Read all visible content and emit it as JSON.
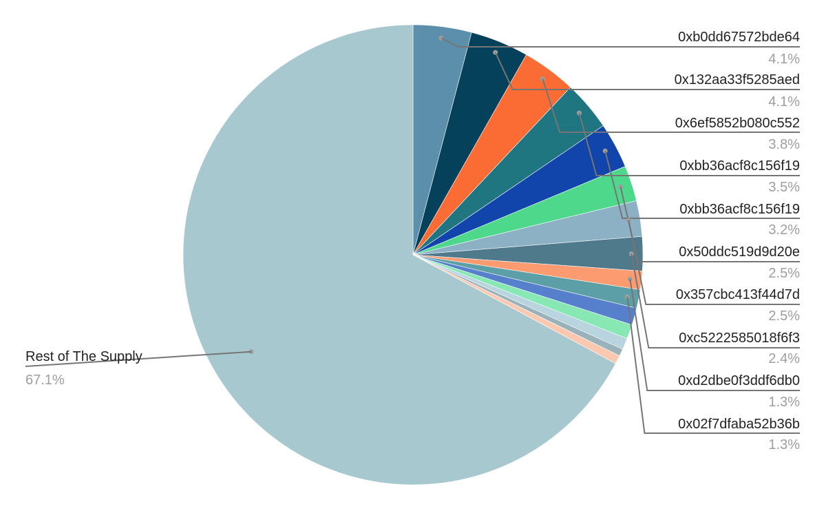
{
  "chart_data": {
    "type": "pie",
    "title": "",
    "slices": [
      {
        "label": "0xb0dd67572bde64",
        "value": 4.1,
        "pct_label": "4.1%",
        "color": "#5b8fab"
      },
      {
        "label": "0x132aa33f5285aed",
        "value": 4.1,
        "pct_label": "4.1%",
        "color": "#05415a"
      },
      {
        "label": "0x6ef5852b080c552",
        "value": 3.8,
        "pct_label": "3.8%",
        "color": "#fb6b34"
      },
      {
        "label": "0xbb36acf8c156f19",
        "value": 3.5,
        "pct_label": "3.5%",
        "color": "#1f7680"
      },
      {
        "label": "0xbb36acf8c156f19",
        "value": 3.2,
        "pct_label": "3.2%",
        "color": "#1245ab"
      },
      {
        "label": "0x50ddc519d9d20e",
        "value": 2.5,
        "pct_label": "2.5%",
        "color": "#4ed88c"
      },
      {
        "label": "0x357cbc413f44d7d",
        "value": 2.5,
        "pct_label": "2.5%",
        "color": "#8cb1c4"
      },
      {
        "label": "0xc5222585018f6f3",
        "value": 2.4,
        "pct_label": "2.4%",
        "color": "#4e7a8c"
      },
      {
        "label": "0xd2dbe0f3ddf6db0",
        "value": 1.3,
        "pct_label": "1.3%",
        "color": "#fc9a70"
      },
      {
        "label": "0x02f7dfaba52b36b",
        "value": 1.3,
        "pct_label": "1.3%",
        "color": "#5d9fa6"
      },
      {
        "label": "",
        "value": 1.2,
        "pct_label": "",
        "color": "#5680cc"
      },
      {
        "label": "",
        "value": 1.0,
        "pct_label": "",
        "color": "#88e8b4"
      },
      {
        "label": "",
        "value": 0.8,
        "pct_label": "",
        "color": "#b8d4de"
      },
      {
        "label": "",
        "value": 0.5,
        "pct_label": "",
        "color": "#9ab2ba"
      },
      {
        "label": "",
        "value": 0.6,
        "pct_label": "",
        "color": "#fdc8b0"
      },
      {
        "label": "Rest of The Supply",
        "value": 67.1,
        "pct_label": "67.1%",
        "color": "#a7c8ce"
      }
    ],
    "legend": "none",
    "label_placement": "outside with leader lines"
  }
}
